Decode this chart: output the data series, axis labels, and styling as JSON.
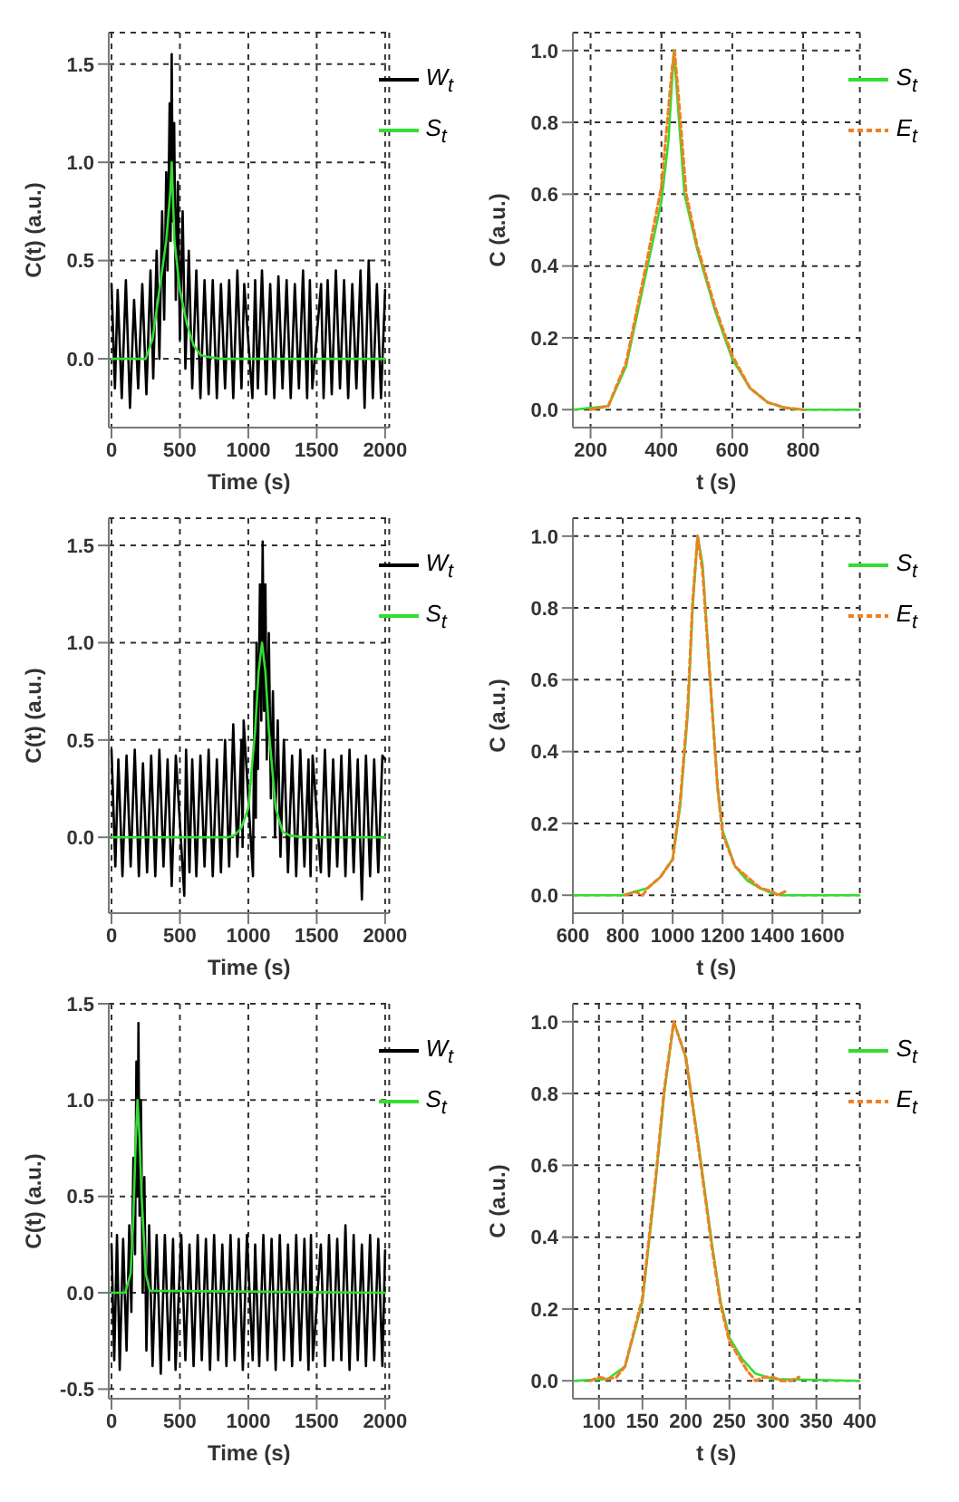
{
  "chart_data": [
    {
      "type": "line",
      "xlabel": "Time (s)",
      "ylabel": "C(t) (a.u.)",
      "xlim": [
        -20,
        2030
      ],
      "ylim": [
        -0.35,
        1.66
      ],
      "xticks": [
        0,
        500,
        1000,
        1500,
        2000
      ],
      "yticks": [
        {
          "value": 0,
          "label": "0.0"
        },
        {
          "value": 0.5,
          "label": "0.5"
        },
        {
          "value": 1,
          "label": "1.0"
        },
        {
          "value": 1.5,
          "label": "1.5"
        }
      ],
      "grid": true,
      "legend": "top right",
      "series": [
        {
          "name": "W$_{t}$",
          "color": "#000000",
          "line_style": "solid",
          "x": [
            0,
            25,
            45,
            75,
            105,
            135,
            165,
            195,
            225,
            255,
            285,
            305,
            330,
            350,
            370,
            385,
            400,
            410,
            425,
            432,
            440,
            448,
            458,
            470,
            485,
            500,
            520,
            540,
            565,
            590,
            620,
            650,
            680,
            710,
            740,
            770,
            800,
            830,
            860,
            890,
            920,
            950,
            970,
            1030,
            1050,
            1070,
            1100,
            1130,
            1160,
            1190,
            1220,
            1250,
            1280,
            1310,
            1340,
            1370,
            1400,
            1430,
            1450,
            1468,
            1532,
            1550,
            1580,
            1610,
            1640,
            1670,
            1700,
            1730,
            1760,
            1790,
            1820,
            1850,
            1880,
            1910,
            1940,
            1970,
            2000
          ],
          "values": [
            0.38,
            -0.15,
            0.35,
            -0.2,
            0.4,
            -0.25,
            0.3,
            -0.15,
            0.38,
            -0.18,
            0.45,
            -0.1,
            0.55,
            0.0,
            0.75,
            0.2,
            0.95,
            0.45,
            1.3,
            0.6,
            1.55,
            0.7,
            1.2,
            0.3,
            0.9,
            0.1,
            0.75,
            -0.05,
            0.55,
            -0.15,
            0.45,
            -0.2,
            0.4,
            -0.18,
            0.4,
            -0.2,
            0.38,
            -0.15,
            0.4,
            -0.2,
            0.45,
            -0.15,
            0.38,
            -0.2,
            0.4,
            -0.15,
            0.45,
            -0.18,
            0.38,
            -0.2,
            0.42,
            -0.15,
            0.4,
            -0.2,
            0.38,
            -0.15,
            0.45,
            -0.2,
            0.4,
            -0.15,
            0.38,
            -0.2,
            0.4,
            -0.18,
            0.45,
            -0.15,
            0.4,
            -0.2,
            0.38,
            -0.15,
            0.45,
            -0.25,
            0.5,
            -0.2,
            0.38,
            -0.2,
            0.35
          ]
        },
        {
          "name": "S$_{t}$",
          "color": "#33dd33",
          "line_style": "solid",
          "x": [
            0,
            250,
            300,
            350,
            400,
            430,
            440,
            460,
            500,
            550,
            600,
            650,
            700,
            800,
            2000
          ],
          "values": [
            0,
            0,
            0.1,
            0.35,
            0.6,
            0.85,
            1.0,
            0.6,
            0.35,
            0.18,
            0.07,
            0.02,
            0.01,
            0,
            0
          ]
        }
      ]
    },
    {
      "type": "line",
      "xlabel": "t (s)",
      "ylabel": "C (a.u.)",
      "xlim": [
        150,
        960
      ],
      "ylim": [
        -0.05,
        1.05
      ],
      "xticks": [
        200,
        400,
        600,
        800
      ],
      "yticks": [
        {
          "value": 0,
          "label": "0.0"
        },
        {
          "value": 0.2,
          "label": "0.2"
        },
        {
          "value": 0.4,
          "label": "0.4"
        },
        {
          "value": 0.6,
          "label": "0.6"
        },
        {
          "value": 0.8,
          "label": "0.8"
        },
        {
          "value": 1,
          "label": "1.0"
        }
      ],
      "grid": true,
      "legend": "top right",
      "series": [
        {
          "name": "S$_{t}$",
          "color": "#33dd33",
          "line_style": "solid",
          "x": [
            150,
            250,
            300,
            350,
            400,
            420,
            435,
            450,
            465,
            500,
            550,
            600,
            650,
            700,
            750,
            800,
            960
          ],
          "values": [
            0,
            0.01,
            0.12,
            0.35,
            0.58,
            0.75,
            1.0,
            0.8,
            0.6,
            0.45,
            0.28,
            0.14,
            0.06,
            0.02,
            0.005,
            0,
            0
          ]
        },
        {
          "name": "E$_{t}$",
          "color": "#f08020",
          "line_style": "dashed",
          "x": [
            200,
            250,
            300,
            350,
            400,
            430,
            437,
            450,
            470,
            500,
            550,
            600,
            650,
            700,
            750,
            800
          ],
          "values": [
            0,
            0.01,
            0.13,
            0.37,
            0.62,
            0.95,
            1.0,
            0.85,
            0.6,
            0.46,
            0.29,
            0.15,
            0.06,
            0.02,
            0.005,
            0
          ]
        }
      ]
    },
    {
      "type": "line",
      "xlabel": "Time (s)",
      "ylabel": "C(t) (a.u.)",
      "xlim": [
        -20,
        2030
      ],
      "ylim": [
        -0.39,
        1.64
      ],
      "xticks": [
        0,
        500,
        1000,
        1500,
        2000
      ],
      "yticks": [
        {
          "value": 0,
          "label": "0.0"
        },
        {
          "value": 0.5,
          "label": "0.5"
        },
        {
          "value": 1,
          "label": "1.0"
        },
        {
          "value": 1.5,
          "label": "1.5"
        }
      ],
      "grid": true,
      "legend": "top right",
      "series": [
        {
          "name": "W$_{t}$",
          "color": "#000000",
          "line_style": "solid",
          "x": [
            0,
            28,
            50,
            80,
            110,
            140,
            170,
            200,
            230,
            260,
            290,
            320,
            350,
            380,
            410,
            440,
            470,
            532,
            545,
            570,
            590,
            620,
            650,
            680,
            710,
            740,
            770,
            800,
            830,
            860,
            890,
            920,
            950,
            958,
            966,
            1034,
            1045,
            1055,
            1060,
            1070,
            1085,
            1095,
            1105,
            1115,
            1125,
            1135,
            1150,
            1165,
            1180,
            1195,
            1215,
            1235,
            1260,
            1290,
            1320,
            1350,
            1380,
            1410,
            1440,
            1455,
            1470,
            1530,
            1560,
            1590,
            1620,
            1650,
            1680,
            1710,
            1740,
            1770,
            1800,
            1830,
            1860,
            1890,
            1920,
            1950,
            1980,
            2000
          ],
          "values": [
            0.45,
            -0.15,
            0.4,
            -0.2,
            0.42,
            -0.15,
            0.45,
            -0.2,
            0.38,
            -0.18,
            0.42,
            -0.2,
            0.45,
            -0.15,
            0.4,
            -0.25,
            0.42,
            -0.3,
            0.45,
            -0.18,
            0.4,
            -0.2,
            0.42,
            -0.15,
            0.45,
            -0.2,
            0.4,
            -0.18,
            0.5,
            -0.15,
            0.58,
            -0.1,
            0.5,
            -0.05,
            0.6,
            -0.2,
            0.75,
            0.1,
            1.0,
            0.35,
            1.3,
            0.6,
            1.52,
            0.65,
            1.3,
            0.4,
            1.05,
            0.2,
            0.75,
            0.0,
            0.6,
            -0.1,
            0.5,
            -0.18,
            0.42,
            -0.2,
            0.45,
            -0.15,
            0.4,
            -0.2,
            0.42,
            -0.18,
            0.45,
            -0.2,
            0.4,
            -0.15,
            0.42,
            -0.2,
            0.45,
            -0.18,
            0.4,
            -0.32,
            0.42,
            -0.2,
            0.4,
            -0.18,
            0.42,
            0.4
          ]
        },
        {
          "name": "S$_{t}$",
          "color": "#33dd33",
          "line_style": "solid",
          "x": [
            0,
            850,
            900,
            950,
            1000,
            1050,
            1075,
            1100,
            1125,
            1150,
            1200,
            1250,
            1300,
            1400,
            2000
          ],
          "values": [
            0,
            0,
            0.01,
            0.05,
            0.15,
            0.55,
            0.85,
            1.0,
            0.85,
            0.55,
            0.15,
            0.03,
            0.01,
            0,
            0
          ]
        }
      ]
    },
    {
      "type": "line",
      "xlabel": "t (s)",
      "ylabel": "C (a.u.)",
      "xlim": [
        600,
        1750
      ],
      "ylim": [
        -0.05,
        1.05
      ],
      "xticks": [
        600,
        800,
        1000,
        1200,
        1400,
        1600
      ],
      "yticks": [
        {
          "value": 0,
          "label": "0.0"
        },
        {
          "value": 0.2,
          "label": "0.2"
        },
        {
          "value": 0.4,
          "label": "0.4"
        },
        {
          "value": 0.6,
          "label": "0.6"
        },
        {
          "value": 0.8,
          "label": "0.8"
        },
        {
          "value": 1,
          "label": "1.0"
        }
      ],
      "grid": true,
      "legend": "top right",
      "series": [
        {
          "name": "S$_{t}$",
          "color": "#33dd33",
          "line_style": "solid",
          "x": [
            600,
            800,
            900,
            950,
            1000,
            1030,
            1060,
            1080,
            1100,
            1120,
            1150,
            1180,
            1200,
            1250,
            1300,
            1350,
            1400,
            1450,
            1750
          ],
          "values": [
            0,
            0,
            0.02,
            0.05,
            0.1,
            0.25,
            0.5,
            0.8,
            1.0,
            0.92,
            0.6,
            0.3,
            0.18,
            0.08,
            0.04,
            0.02,
            0.005,
            0,
            0
          ]
        },
        {
          "name": "E$_{t}$",
          "color": "#f08020",
          "line_style": "dashed",
          "x": [
            810,
            850,
            880,
            900,
            950,
            1000,
            1030,
            1060,
            1080,
            1100,
            1120,
            1150,
            1180,
            1200,
            1250,
            1300,
            1350,
            1400,
            1420,
            1450
          ],
          "values": [
            0,
            0.01,
            0,
            0.02,
            0.05,
            0.1,
            0.26,
            0.52,
            0.82,
            1.0,
            0.9,
            0.6,
            0.3,
            0.17,
            0.08,
            0.05,
            0.02,
            0.01,
            0,
            0.01
          ]
        }
      ]
    },
    {
      "type": "line",
      "xlabel": "Time (s)",
      "ylabel": "C(t) (a.u.)",
      "xlim": [
        -20,
        2030
      ],
      "ylim": [
        -0.55,
        1.5
      ],
      "xticks": [
        0,
        500,
        1000,
        1500,
        2000
      ],
      "yticks": [
        {
          "value": -0.5,
          "label": "-0.5"
        },
        {
          "value": 0,
          "label": "0.0"
        },
        {
          "value": 0.5,
          "label": "0.5"
        },
        {
          "value": 1,
          "label": "1.0"
        },
        {
          "value": 1.5,
          "label": "1.5"
        }
      ],
      "grid": true,
      "legend": "top right",
      "series": [
        {
          "name": "W$_{t}$",
          "color": "#000000",
          "line_style": "solid",
          "x": [
            0,
            20,
            40,
            60,
            85,
            110,
            130,
            145,
            160,
            172,
            182,
            190,
            197,
            205,
            215,
            228,
            240,
            255,
            275,
            300,
            330,
            360,
            390,
            420,
            450,
            468,
            510,
            540,
            570,
            600,
            630,
            660,
            690,
            720,
            750,
            780,
            810,
            840,
            870,
            900,
            930,
            960,
            990,
            1032,
            1050,
            1080,
            1110,
            1140,
            1170,
            1200,
            1230,
            1260,
            1290,
            1320,
            1350,
            1380,
            1410,
            1440,
            1458,
            1472,
            1530,
            1560,
            1590,
            1620,
            1650,
            1680,
            1710,
            1740,
            1770,
            1800,
            1830,
            1860,
            1890,
            1920,
            1950,
            1980,
            2000
          ],
          "values": [
            0.25,
            -0.35,
            0.3,
            -0.4,
            0.28,
            -0.3,
            0.35,
            -0.1,
            0.7,
            0.2,
            1.2,
            0.5,
            1.4,
            0.4,
            1.0,
            0.0,
            0.6,
            -0.3,
            0.35,
            -0.38,
            0.3,
            -0.42,
            0.3,
            -0.35,
            0.28,
            -0.4,
            0.3,
            -0.35,
            0.25,
            -0.38,
            0.3,
            -0.35,
            0.28,
            -0.4,
            0.3,
            -0.35,
            0.25,
            -0.38,
            0.3,
            -0.35,
            0.28,
            -0.4,
            0.3,
            -0.35,
            0.25,
            -0.38,
            0.3,
            -0.35,
            0.28,
            -0.4,
            0.3,
            -0.35,
            0.25,
            -0.38,
            0.3,
            -0.35,
            0.28,
            -0.4,
            0.3,
            -0.35,
            0.25,
            -0.38,
            0.3,
            -0.35,
            0.28,
            -0.35,
            0.35,
            -0.4,
            0.3,
            -0.35,
            0.25,
            -0.38,
            0.3,
            -0.35,
            0.28,
            -0.38,
            0.22
          ]
        },
        {
          "name": "S$_{t}$",
          "color": "#33dd33",
          "line_style": "solid",
          "x": [
            0,
            100,
            140,
            160,
            175,
            190,
            205,
            220,
            250,
            280,
            2000
          ],
          "values": [
            0,
            0,
            0.1,
            0.4,
            0.75,
            1.0,
            0.8,
            0.5,
            0.1,
            0.01,
            0
          ]
        }
      ]
    },
    {
      "type": "line",
      "xlabel": "t (s)",
      "ylabel": "C (a.u.)",
      "xlim": [
        70,
        400
      ],
      "ylim": [
        -0.05,
        1.05
      ],
      "xticks": [
        100,
        150,
        200,
        250,
        300,
        350,
        400
      ],
      "yticks": [
        {
          "value": 0,
          "label": "0.0"
        },
        {
          "value": 0.2,
          "label": "0.2"
        },
        {
          "value": 0.4,
          "label": "0.4"
        },
        {
          "value": 0.6,
          "label": "0.6"
        },
        {
          "value": 0.8,
          "label": "0.8"
        },
        {
          "value": 1,
          "label": "1.0"
        }
      ],
      "grid": true,
      "legend": "top right",
      "series": [
        {
          "name": "S$_{t}$",
          "color": "#33dd33",
          "line_style": "solid",
          "x": [
            70,
            110,
            130,
            150,
            165,
            175,
            186,
            200,
            215,
            230,
            240,
            250,
            265,
            280,
            300,
            400
          ],
          "values": [
            0,
            0.005,
            0.04,
            0.22,
            0.55,
            0.8,
            1.0,
            0.9,
            0.65,
            0.38,
            0.22,
            0.12,
            0.06,
            0.02,
            0.005,
            0
          ]
        },
        {
          "name": "E$_{t}$",
          "color": "#f08020",
          "line_style": "dashed",
          "x": [
            90,
            100,
            110,
            120,
            130,
            150,
            165,
            175,
            186,
            200,
            215,
            230,
            240,
            250,
            260,
            270,
            280,
            290,
            300,
            310,
            320,
            330
          ],
          "values": [
            0,
            0.01,
            0.005,
            0.01,
            0.04,
            0.23,
            0.56,
            0.81,
            1.0,
            0.9,
            0.64,
            0.37,
            0.21,
            0.11,
            0.07,
            0.03,
            0,
            0.01,
            0.01,
            0,
            0,
            0.01
          ]
        }
      ]
    }
  ]
}
